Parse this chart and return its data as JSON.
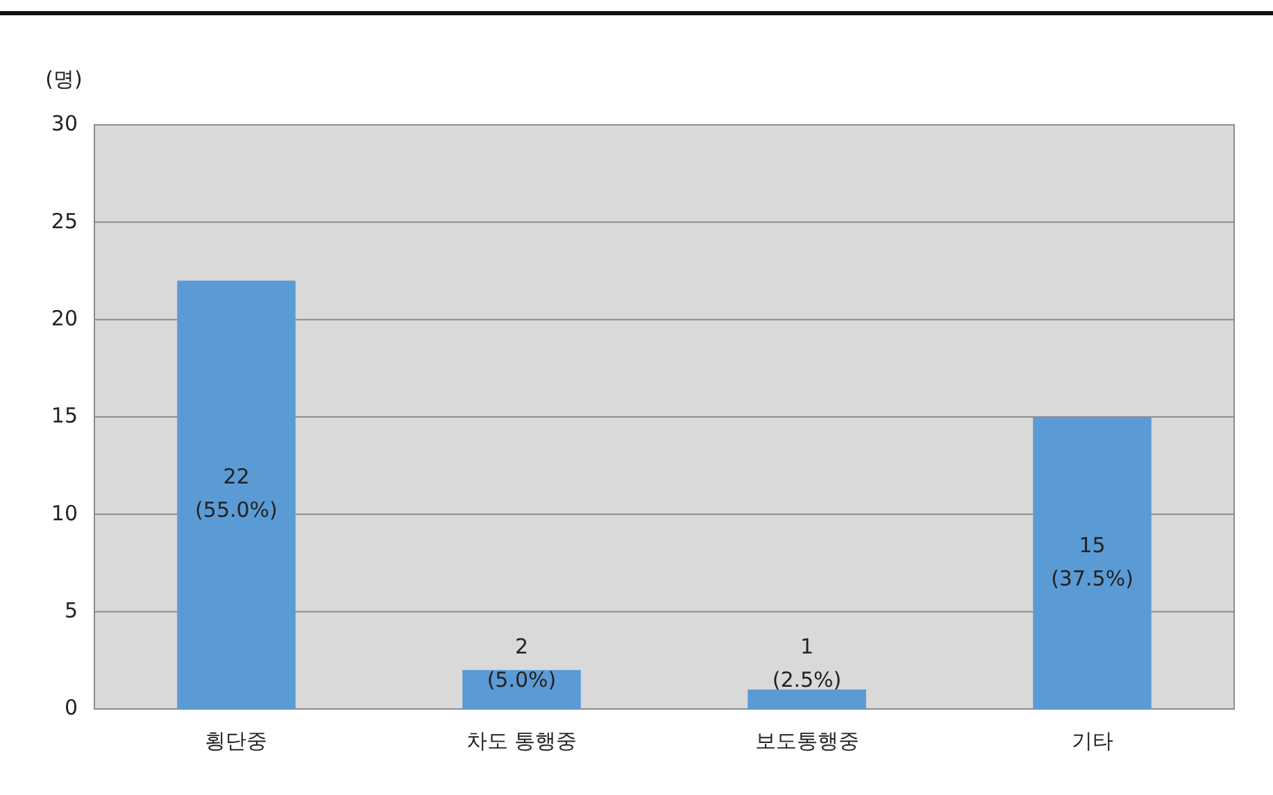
{
  "chart_data": {
    "type": "bar",
    "ylabel": "(명)",
    "categories": [
      "횡단중",
      "차도 통행중",
      "보도통행중",
      "기타"
    ],
    "values": [
      22,
      2,
      1,
      15
    ],
    "color": "#5b9bd5",
    "value_labels": [
      "22\n(55.0%)",
      "2\n(5.0%)",
      "1\n(2.5%)",
      "15\n(37.5%)"
    ],
    "ylim": [
      0,
      30
    ],
    "yticks": [
      0,
      5,
      10,
      15,
      20,
      25,
      30
    ],
    "grid": "y"
  }
}
